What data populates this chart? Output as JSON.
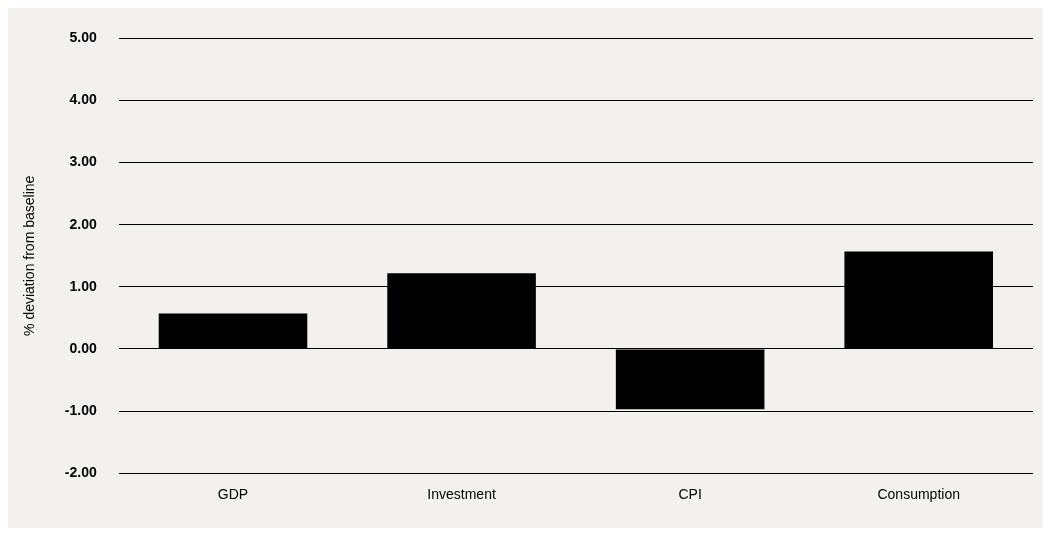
{
  "chart_data": {
    "type": "bar",
    "ylabel": "% deviation from baseline",
    "categories": [
      "GDP",
      "Investment",
      "CPI",
      "Consumption"
    ],
    "values": [
      0.57,
      1.22,
      -0.97,
      1.57
    ],
    "color": "#000000",
    "ylim": [
      -2,
      5
    ],
    "yticks": [
      {
        "value": -2,
        "label": "-2.00"
      },
      {
        "value": -1,
        "label": "-1.00"
      },
      {
        "value": 0,
        "label": "0.00"
      },
      {
        "value": 1,
        "label": "1.00"
      },
      {
        "value": 2,
        "label": "2.00"
      },
      {
        "value": 3,
        "label": "3.00"
      },
      {
        "value": 4,
        "label": "4.00"
      },
      {
        "value": 5,
        "label": "5.00"
      }
    ],
    "grid": "y",
    "legend": false
  }
}
